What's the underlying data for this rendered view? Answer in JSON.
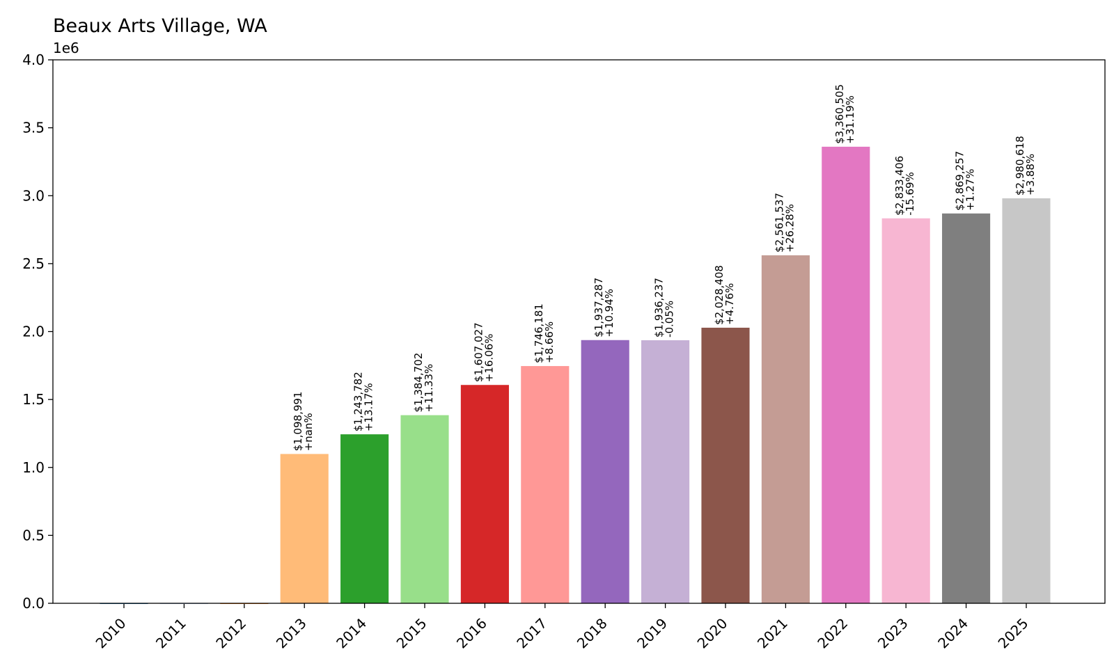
{
  "chart_data": {
    "type": "bar",
    "title": "Beaux Arts Village, WA",
    "xlabel": "",
    "ylabel": "",
    "y_scale_label": "1e6",
    "ylim": [
      0,
      4000000
    ],
    "yticks": [
      0.0,
      0.5,
      1.0,
      1.5,
      2.0,
      2.5,
      3.0,
      3.5,
      4.0
    ],
    "ytick_labels": [
      "0.0",
      "0.5",
      "1.0",
      "1.5",
      "2.0",
      "2.5",
      "3.0",
      "3.5",
      "4.0"
    ],
    "categories": [
      "2010",
      "2011",
      "2012",
      "2013",
      "2014",
      "2015",
      "2016",
      "2017",
      "2018",
      "2019",
      "2020",
      "2021",
      "2022",
      "2023",
      "2024",
      "2025"
    ],
    "values": [
      0,
      0,
      0,
      1098991,
      1243782,
      1384702,
      1607027,
      1746181,
      1937287,
      1936237,
      2028408,
      2561537,
      3360505,
      2833406,
      2869257,
      2980618
    ],
    "value_labels": [
      "",
      "",
      "",
      "$1,098,991",
      "$1,243,782",
      "$1,384,702",
      "$1,607,027",
      "$1,746,181",
      "$1,937,287",
      "$1,936,237",
      "$2,028,408",
      "$2,561,537",
      "$3,360,505",
      "$2,833,406",
      "$2,869,257",
      "$2,980,618"
    ],
    "change_labels": [
      "",
      "",
      "",
      "+nan%",
      "+13.17%",
      "+11.33%",
      "+16.06%",
      "+8.66%",
      "+10.94%",
      "-0.05%",
      "+4.76%",
      "+26.28%",
      "+31.19%",
      "-15.69%",
      "+1.27%",
      "+3.88%"
    ],
    "colors": [
      "#1f77b4",
      "#aec7e8",
      "#ff7f0e",
      "#ffbb78",
      "#2ca02c",
      "#98df8a",
      "#d62728",
      "#ff9896",
      "#9467bd",
      "#c5b0d5",
      "#8c564b",
      "#c49c94",
      "#e377c2",
      "#f7b6d2",
      "#7f7f7f",
      "#c7c7c7"
    ]
  }
}
